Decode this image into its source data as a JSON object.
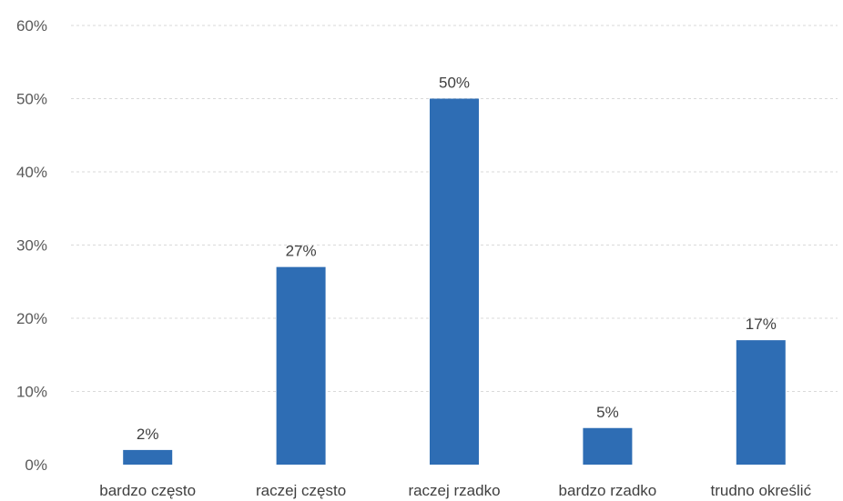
{
  "chart_data": {
    "type": "bar",
    "title": "",
    "xlabel": "",
    "ylabel": "",
    "categories": [
      "bardzo często",
      "raczej często",
      "raczej rzadko",
      "bardzo rzadko",
      "trudno określić"
    ],
    "values": [
      2,
      27,
      50,
      5,
      17
    ],
    "data_labels": [
      "2%",
      "27%",
      "50%",
      "5%",
      "17%"
    ],
    "ylim": [
      0,
      60
    ],
    "y_ticks": [
      0,
      10,
      20,
      30,
      40,
      50,
      60
    ],
    "y_tick_labels": [
      "0%",
      "10%",
      "20%",
      "30%",
      "40%",
      "50%",
      "60%"
    ],
    "grid": true,
    "legend": "none",
    "bar_color": "#2e6db4"
  }
}
